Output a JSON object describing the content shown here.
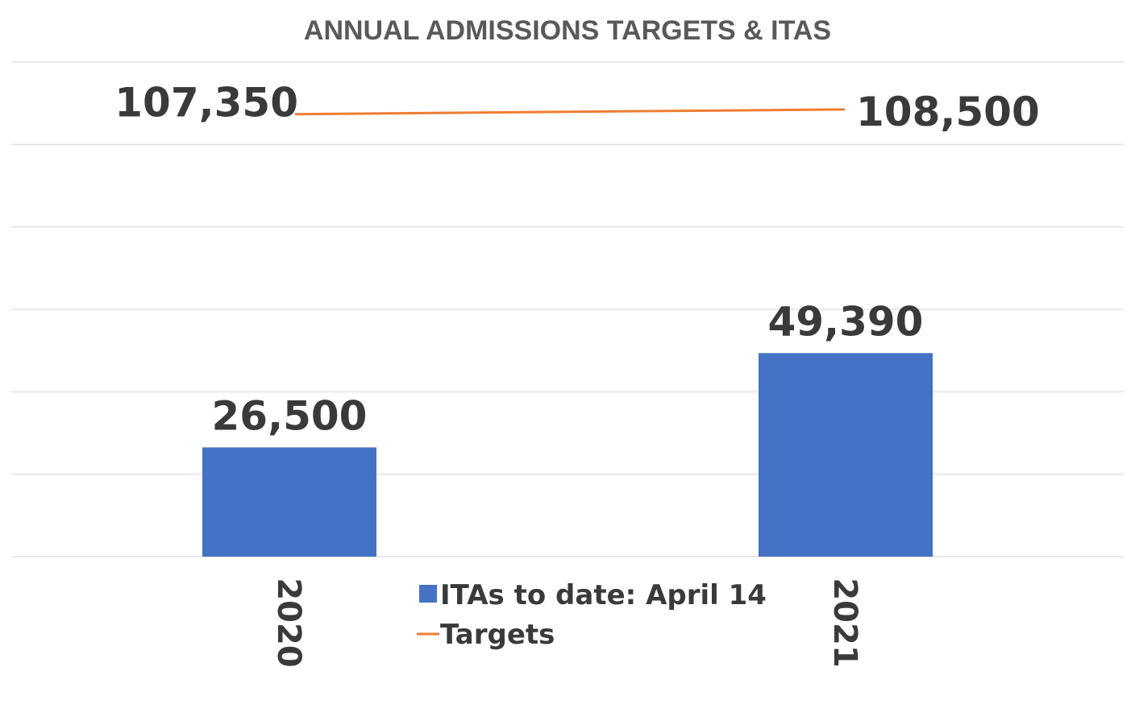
{
  "chart_data": {
    "type": "bar",
    "title": "ANNUAL ADMISSIONS TARGETS & ITAS",
    "categories": [
      "2020",
      "2021"
    ],
    "series": [
      {
        "name": "ITAs to date: April 14",
        "kind": "bar",
        "color": "#4472C4",
        "values": [
          26500,
          49390
        ],
        "labels": [
          "26,500",
          "49,390"
        ]
      },
      {
        "name": "Targets",
        "kind": "line",
        "color": "#ED7D31",
        "values": [
          107350,
          108500
        ],
        "labels": [
          "107,350",
          "108,500"
        ]
      }
    ],
    "xlabel": "",
    "ylabel": "",
    "ylim": [
      0,
      120000
    ],
    "grid": true,
    "legend_position": "bottom-center"
  }
}
